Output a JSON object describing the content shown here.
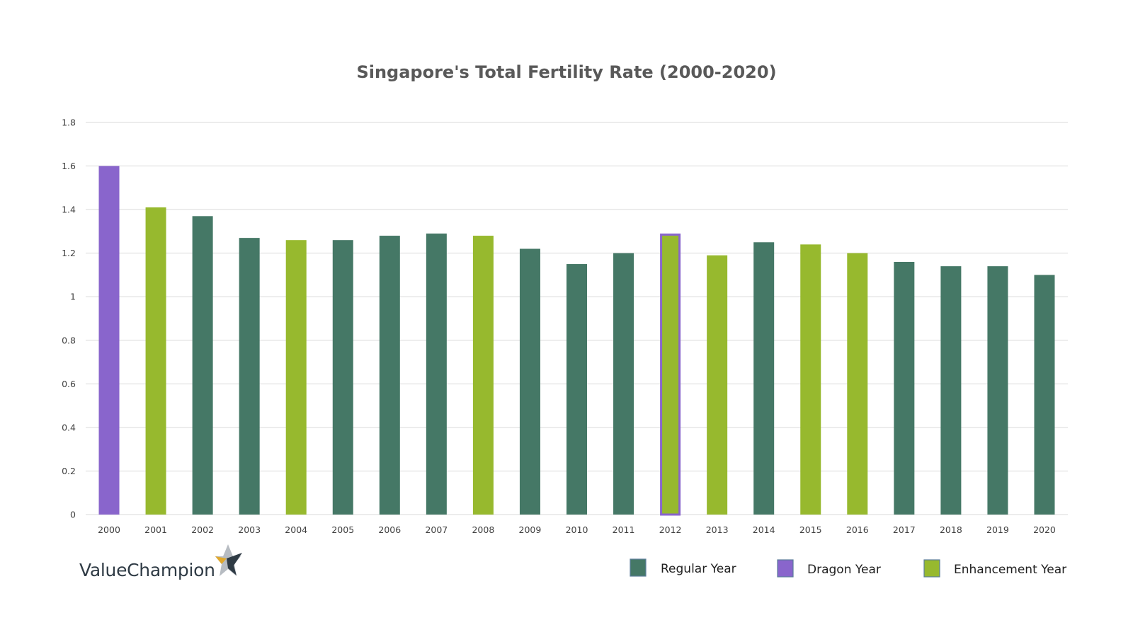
{
  "chart_data": {
    "type": "bar",
    "title": "Singapore's Total Fertility Rate (2000-2020)",
    "xlabel": "",
    "ylabel": "",
    "ylim": [
      0,
      1.8
    ],
    "yticks": [
      0,
      0.2,
      0.4,
      0.6,
      0.8,
      1,
      1.2,
      1.4,
      1.6,
      1.8
    ],
    "grid": true,
    "legend_position": "bottom-right",
    "categories": [
      "2000",
      "2001",
      "2002",
      "2003",
      "2004",
      "2005",
      "2006",
      "2007",
      "2008",
      "2009",
      "2010",
      "2011",
      "2012",
      "2013",
      "2014",
      "2015",
      "2016",
      "2017",
      "2018",
      "2019",
      "2020"
    ],
    "values": [
      1.6,
      1.41,
      1.37,
      1.27,
      1.26,
      1.26,
      1.28,
      1.29,
      1.28,
      1.22,
      1.15,
      1.2,
      1.29,
      1.19,
      1.25,
      1.24,
      1.2,
      1.16,
      1.14,
      1.14,
      1.1
    ],
    "year_types": [
      "dragon",
      "enhancement",
      "regular",
      "regular",
      "enhancement",
      "regular",
      "regular",
      "regular",
      "enhancement",
      "regular",
      "regular",
      "regular",
      "dragon-enhancement",
      "enhancement",
      "regular",
      "enhancement",
      "enhancement",
      "regular",
      "regular",
      "regular",
      "regular"
    ],
    "legend": [
      {
        "key": "regular",
        "label": "Regular Year"
      },
      {
        "key": "dragon",
        "label": "Dragon Year"
      },
      {
        "key": "enhancement",
        "label": "Enhancement Year"
      }
    ]
  },
  "colors": {
    "regular": "#457866",
    "dragon": "#8965CC",
    "enhancement": "#97B92E",
    "gridline": "#D9D9D9",
    "axis_text": "#404040",
    "title_text": "#595959"
  },
  "brand": {
    "name": "ValueChampion",
    "logo_icon": "star-icon"
  }
}
